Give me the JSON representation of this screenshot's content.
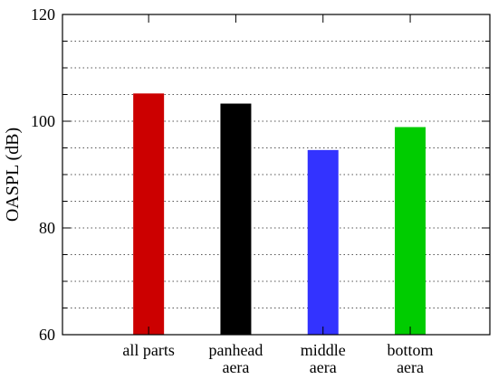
{
  "chart_data": {
    "type": "bar",
    "categories": [
      [
        "all parts"
      ],
      [
        "panhead",
        "aera"
      ],
      [
        "middle",
        "aera"
      ],
      [
        "bottom",
        "aera"
      ]
    ],
    "values": [
      105.2,
      103.3,
      94.6,
      98.9
    ],
    "colors": [
      "#cc0000",
      "#000000",
      "#3333ff",
      "#00cc00"
    ],
    "xlabel": "",
    "ylabel": "OASPL (dB)",
    "ylim": [
      60,
      120
    ],
    "yticks": [
      60,
      80,
      100,
      120
    ],
    "grid": true,
    "grid_step": 5
  }
}
